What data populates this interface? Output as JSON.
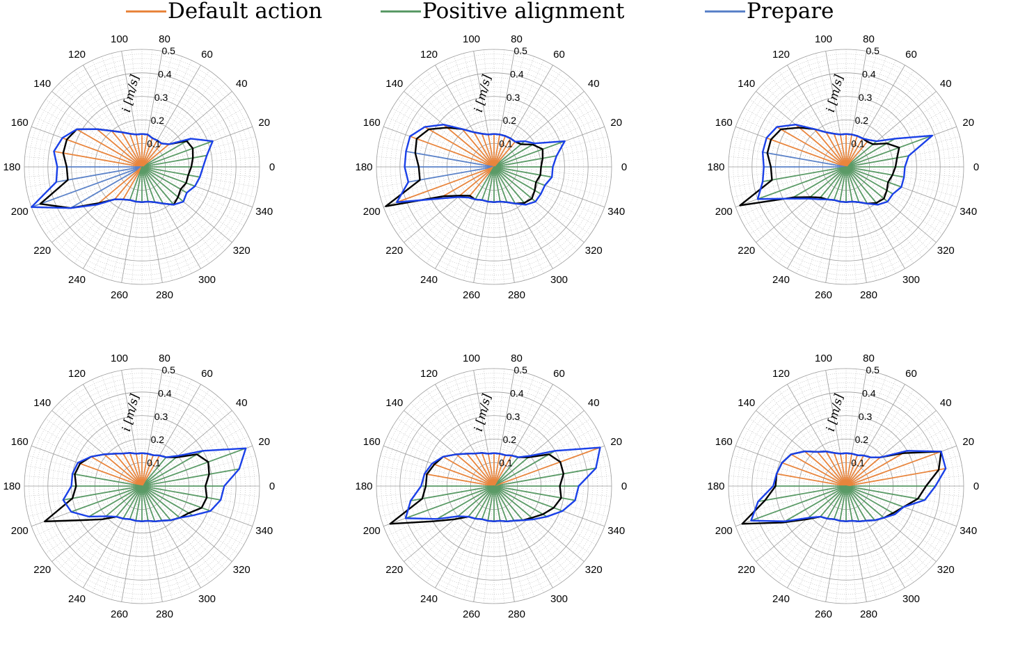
{
  "legend": {
    "items": [
      {
        "label": "Default action",
        "color": "#e8853d"
      },
      {
        "label": "Positive alignment",
        "color": "#5a9a66"
      },
      {
        "label": "Prepare",
        "color": "#5b82c8"
      }
    ]
  },
  "colors": {
    "envelope": "#1a40e8",
    "reference": "#000000",
    "grid": "#9a9a9a",
    "minor_grid": "#b5b5b5"
  },
  "chart_data": [
    {
      "type": "polar",
      "r_label": "i [m/s]",
      "r_ticks": [
        "0.1",
        "0.2",
        "0.3",
        "0.4",
        "0.5"
      ],
      "r_lim": [
        0,
        0.5
      ],
      "theta_ticks": [
        "0",
        "20",
        "40",
        "60",
        "80",
        "100",
        "120",
        "140",
        "160",
        "180",
        "200",
        "220",
        "240",
        "260",
        "280",
        "300",
        "320",
        "340"
      ],
      "theta_deg": [
        0,
        10,
        20,
        30,
        40,
        50,
        60,
        70,
        80,
        90,
        100,
        110,
        120,
        130,
        140,
        150,
        160,
        170,
        180,
        190,
        200,
        210,
        220,
        230,
        240,
        250,
        260,
        270,
        280,
        290,
        300,
        310,
        320,
        330,
        340,
        350
      ],
      "envelope": [
        0.26,
        0.28,
        0.32,
        0.24,
        0.15,
        0.13,
        0.13,
        0.13,
        0.14,
        0.14,
        0.14,
        0.15,
        0.17,
        0.2,
        0.25,
        0.32,
        0.36,
        0.38,
        0.36,
        0.37,
        0.5,
        0.35,
        0.25,
        0.18,
        0.16,
        0.15,
        0.15,
        0.15,
        0.15,
        0.16,
        0.18,
        0.21,
        0.23,
        0.22,
        0.24,
        0.25
      ],
      "reference": [
        0.21,
        0.22,
        0.23,
        0.22,
        0.15,
        0.13,
        0.13,
        0.13,
        0.14,
        0.14,
        0.14,
        0.15,
        0.17,
        0.2,
        0.25,
        0.32,
        0.34,
        0.34,
        0.32,
        0.32,
        0.46,
        0.35,
        0.24,
        0.18,
        0.16,
        0.15,
        0.15,
        0.15,
        0.15,
        0.16,
        0.18,
        0.21,
        0.2,
        0.19,
        0.2,
        0.2
      ],
      "action": [
        "green",
        "green",
        "green",
        "green",
        "orange",
        "orange",
        "orange",
        "orange",
        "orange",
        "orange",
        "orange",
        "orange",
        "orange",
        "orange",
        "orange",
        "orange",
        "orange",
        "orange",
        "blue",
        "blue",
        "blue",
        "blue",
        "orange",
        "orange",
        "orange",
        "green",
        "green",
        "green",
        "green",
        "green",
        "green",
        "green",
        "green",
        "green",
        "green",
        "green"
      ]
    },
    {
      "type": "polar",
      "r_label": "i [m/s]",
      "r_ticks": [
        "0.1",
        "0.2",
        "0.3",
        "0.4",
        "0.5"
      ],
      "r_lim": [
        0,
        0.5
      ],
      "theta_ticks": [
        "0",
        "20",
        "40",
        "60",
        "80",
        "100",
        "120",
        "140",
        "160",
        "180",
        "200",
        "220",
        "240",
        "260",
        "280",
        "300",
        "320",
        "340"
      ],
      "theta_deg": [
        0,
        10,
        20,
        30,
        40,
        50,
        60,
        70,
        80,
        90,
        100,
        110,
        120,
        130,
        140,
        150,
        160,
        170,
        180,
        190,
        200,
        210,
        220,
        230,
        240,
        250,
        260,
        270,
        280,
        290,
        300,
        310,
        320,
        330,
        340,
        350
      ],
      "envelope": [
        0.25,
        0.27,
        0.32,
        0.2,
        0.17,
        0.14,
        0.14,
        0.14,
        0.14,
        0.14,
        0.14,
        0.15,
        0.17,
        0.21,
        0.28,
        0.34,
        0.38,
        0.38,
        0.38,
        0.37,
        0.44,
        0.27,
        0.2,
        0.17,
        0.16,
        0.15,
        0.15,
        0.15,
        0.15,
        0.16,
        0.18,
        0.21,
        0.23,
        0.23,
        0.23,
        0.25
      ],
      "reference": [
        0.2,
        0.21,
        0.22,
        0.19,
        0.15,
        0.14,
        0.14,
        0.14,
        0.14,
        0.14,
        0.14,
        0.15,
        0.17,
        0.21,
        0.26,
        0.32,
        0.35,
        0.34,
        0.32,
        0.32,
        0.49,
        0.25,
        0.19,
        0.16,
        0.16,
        0.15,
        0.15,
        0.15,
        0.15,
        0.16,
        0.18,
        0.2,
        0.21,
        0.2,
        0.19,
        0.2
      ],
      "action": [
        "green",
        "green",
        "green",
        "green",
        "green",
        "orange",
        "orange",
        "orange",
        "orange",
        "orange",
        "orange",
        "orange",
        "orange",
        "orange",
        "orange",
        "orange",
        "orange",
        "blue",
        "blue",
        "blue",
        "orange",
        "orange",
        "orange",
        "orange",
        "green",
        "green",
        "green",
        "green",
        "green",
        "green",
        "green",
        "green",
        "green",
        "green",
        "green",
        "green"
      ]
    },
    {
      "type": "polar",
      "r_label": "i [m/s]",
      "r_ticks": [
        "0.1",
        "0.2",
        "0.3",
        "0.4",
        "0.5"
      ],
      "r_lim": [
        0,
        0.5
      ],
      "theta_ticks": [
        "0",
        "20",
        "40",
        "60",
        "80",
        "100",
        "120",
        "140",
        "160",
        "180",
        "200",
        "220",
        "240",
        "260",
        "280",
        "300",
        "320",
        "340"
      ],
      "theta_deg": [
        0,
        10,
        20,
        30,
        40,
        50,
        60,
        70,
        80,
        90,
        100,
        110,
        120,
        130,
        140,
        150,
        160,
        170,
        180,
        190,
        200,
        210,
        220,
        230,
        240,
        250,
        260,
        270,
        280,
        290,
        300,
        310,
        320,
        330,
        340,
        350
      ],
      "envelope": [
        0.25,
        0.27,
        0.39,
        0.24,
        0.17,
        0.15,
        0.14,
        0.14,
        0.14,
        0.14,
        0.14,
        0.15,
        0.17,
        0.21,
        0.28,
        0.34,
        0.36,
        0.36,
        0.35,
        0.36,
        0.4,
        0.27,
        0.21,
        0.18,
        0.16,
        0.15,
        0.15,
        0.15,
        0.15,
        0.16,
        0.18,
        0.21,
        0.23,
        0.23,
        0.25,
        0.25
      ],
      "reference": [
        0.21,
        0.22,
        0.24,
        0.2,
        0.15,
        0.14,
        0.14,
        0.14,
        0.14,
        0.14,
        0.14,
        0.15,
        0.17,
        0.21,
        0.26,
        0.32,
        0.34,
        0.34,
        0.32,
        0.32,
        0.48,
        0.26,
        0.2,
        0.17,
        0.16,
        0.15,
        0.15,
        0.15,
        0.15,
        0.16,
        0.18,
        0.2,
        0.21,
        0.2,
        0.19,
        0.2
      ],
      "action": [
        "green",
        "green",
        "green",
        "green",
        "green",
        "orange",
        "orange",
        "orange",
        "orange",
        "orange",
        "orange",
        "orange",
        "orange",
        "orange",
        "orange",
        "orange",
        "orange",
        "blue",
        "blue",
        "green",
        "green",
        "green",
        "green",
        "green",
        "green",
        "green",
        "green",
        "green",
        "green",
        "green",
        "green",
        "green",
        "green",
        "green",
        "green",
        "green"
      ]
    },
    {
      "type": "polar",
      "r_label": "i [m/s]",
      "r_ticks": [
        "0.1",
        "0.2",
        "0.3",
        "0.4",
        "0.5"
      ],
      "r_lim": [
        0,
        0.5
      ],
      "theta_ticks": [
        "0",
        "20",
        "40",
        "60",
        "80",
        "100",
        "120",
        "140",
        "160",
        "180",
        "200",
        "220",
        "240",
        "260",
        "280",
        "300",
        "320",
        "340"
      ],
      "theta_deg": [
        0,
        10,
        20,
        30,
        40,
        50,
        60,
        70,
        80,
        90,
        100,
        110,
        120,
        130,
        140,
        150,
        160,
        170,
        180,
        190,
        200,
        210,
        220,
        230,
        240,
        250,
        260,
        270,
        280,
        290,
        300,
        310,
        320,
        330,
        340,
        350
      ],
      "envelope": [
        0.35,
        0.42,
        0.47,
        0.3,
        0.2,
        0.16,
        0.15,
        0.14,
        0.14,
        0.14,
        0.14,
        0.15,
        0.16,
        0.18,
        0.21,
        0.25,
        0.29,
        0.3,
        0.3,
        0.34,
        0.32,
        0.26,
        0.2,
        0.17,
        0.16,
        0.15,
        0.15,
        0.15,
        0.15,
        0.16,
        0.17,
        0.19,
        0.21,
        0.25,
        0.31,
        0.34
      ],
      "reference": [
        0.27,
        0.29,
        0.3,
        0.27,
        0.19,
        0.16,
        0.15,
        0.14,
        0.14,
        0.14,
        0.14,
        0.15,
        0.16,
        0.18,
        0.21,
        0.25,
        0.28,
        0.29,
        0.28,
        0.3,
        0.44,
        0.29,
        0.22,
        0.17,
        0.16,
        0.15,
        0.15,
        0.15,
        0.15,
        0.16,
        0.17,
        0.19,
        0.21,
        0.23,
        0.27,
        0.28
      ],
      "action": [
        "green",
        "green",
        "green",
        "green",
        "green",
        "green",
        "orange",
        "orange",
        "orange",
        "orange",
        "orange",
        "orange",
        "orange",
        "orange",
        "orange",
        "orange",
        "orange",
        "green",
        "green",
        "green",
        "green",
        "green",
        "green",
        "green",
        "green",
        "green",
        "green",
        "green",
        "green",
        "green",
        "green",
        "green",
        "green",
        "green",
        "green",
        "green"
      ]
    },
    {
      "type": "polar",
      "r_label": "i [m/s]",
      "r_ticks": [
        "0.1",
        "0.2",
        "0.3",
        "0.4",
        "0.5"
      ],
      "r_lim": [
        0,
        0.5
      ],
      "theta_ticks": [
        "0",
        "20",
        "40",
        "60",
        "80",
        "100",
        "120",
        "140",
        "160",
        "180",
        "200",
        "220",
        "240",
        "260",
        "280",
        "300",
        "320",
        "340"
      ],
      "theta_deg": [
        0,
        10,
        20,
        30,
        40,
        50,
        60,
        70,
        80,
        90,
        100,
        110,
        120,
        130,
        140,
        150,
        160,
        170,
        180,
        190,
        200,
        210,
        220,
        230,
        240,
        250,
        260,
        270,
        280,
        290,
        300,
        310,
        320,
        330,
        340,
        350
      ],
      "envelope": [
        0.36,
        0.44,
        0.48,
        0.3,
        0.2,
        0.16,
        0.15,
        0.14,
        0.14,
        0.14,
        0.14,
        0.15,
        0.16,
        0.18,
        0.21,
        0.25,
        0.28,
        0.3,
        0.31,
        0.36,
        0.4,
        0.28,
        0.2,
        0.17,
        0.16,
        0.15,
        0.15,
        0.15,
        0.15,
        0.16,
        0.17,
        0.19,
        0.22,
        0.26,
        0.31,
        0.35
      ],
      "reference": [
        0.28,
        0.3,
        0.3,
        0.27,
        0.19,
        0.16,
        0.15,
        0.14,
        0.14,
        0.14,
        0.14,
        0.15,
        0.16,
        0.18,
        0.21,
        0.25,
        0.27,
        0.29,
        0.29,
        0.31,
        0.47,
        0.3,
        0.22,
        0.17,
        0.16,
        0.15,
        0.15,
        0.15,
        0.15,
        0.16,
        0.17,
        0.19,
        0.21,
        0.24,
        0.27,
        0.29
      ],
      "action": [
        "green",
        "green",
        "orange",
        "green",
        "green",
        "green",
        "orange",
        "orange",
        "orange",
        "orange",
        "orange",
        "orange",
        "orange",
        "orange",
        "orange",
        "orange",
        "orange",
        "orange",
        "green",
        "green",
        "green",
        "green",
        "green",
        "green",
        "green",
        "green",
        "green",
        "green",
        "green",
        "green",
        "green",
        "green",
        "green",
        "green",
        "green",
        "green"
      ]
    },
    {
      "type": "polar",
      "r_label": "i [m/s]",
      "r_ticks": [
        "0.1",
        "0.2",
        "0.3",
        "0.4",
        "0.5"
      ],
      "r_lim": [
        0,
        0.5
      ],
      "theta_ticks": [
        "0",
        "20",
        "40",
        "60",
        "80",
        "100",
        "120",
        "140",
        "160",
        "180",
        "200",
        "220",
        "240",
        "260",
        "280",
        "300",
        "320",
        "340"
      ],
      "theta_deg": [
        0,
        10,
        20,
        30,
        40,
        50,
        60,
        70,
        80,
        90,
        100,
        110,
        120,
        130,
        140,
        150,
        160,
        170,
        180,
        190,
        200,
        210,
        220,
        230,
        240,
        250,
        260,
        270,
        280,
        290,
        300,
        310,
        320,
        330,
        340,
        350
      ],
      "envelope": [
        0.38,
        0.43,
        0.43,
        0.3,
        0.19,
        0.16,
        0.15,
        0.14,
        0.14,
        0.14,
        0.14,
        0.15,
        0.17,
        0.19,
        0.23,
        0.27,
        0.29,
        0.3,
        0.31,
        0.38,
        0.43,
        0.3,
        0.21,
        0.17,
        0.16,
        0.15,
        0.15,
        0.15,
        0.15,
        0.16,
        0.17,
        0.19,
        0.21,
        0.24,
        0.26,
        0.34
      ],
      "reference": [
        0.34,
        0.4,
        0.43,
        0.28,
        0.19,
        0.16,
        0.15,
        0.14,
        0.14,
        0.14,
        0.14,
        0.15,
        0.17,
        0.19,
        0.23,
        0.27,
        0.29,
        0.3,
        0.3,
        0.35,
        0.47,
        0.31,
        0.22,
        0.17,
        0.16,
        0.15,
        0.15,
        0.15,
        0.15,
        0.16,
        0.17,
        0.19,
        0.21,
        0.23,
        0.26,
        0.31
      ],
      "action": [
        "green",
        "orange",
        "orange",
        "orange",
        "orange",
        "orange",
        "orange",
        "orange",
        "orange",
        "orange",
        "orange",
        "orange",
        "orange",
        "orange",
        "orange",
        "orange",
        "orange",
        "orange",
        "green",
        "green",
        "green",
        "green",
        "green",
        "green",
        "green",
        "green",
        "green",
        "green",
        "green",
        "green",
        "green",
        "green",
        "green",
        "green",
        "green",
        "green"
      ]
    }
  ]
}
